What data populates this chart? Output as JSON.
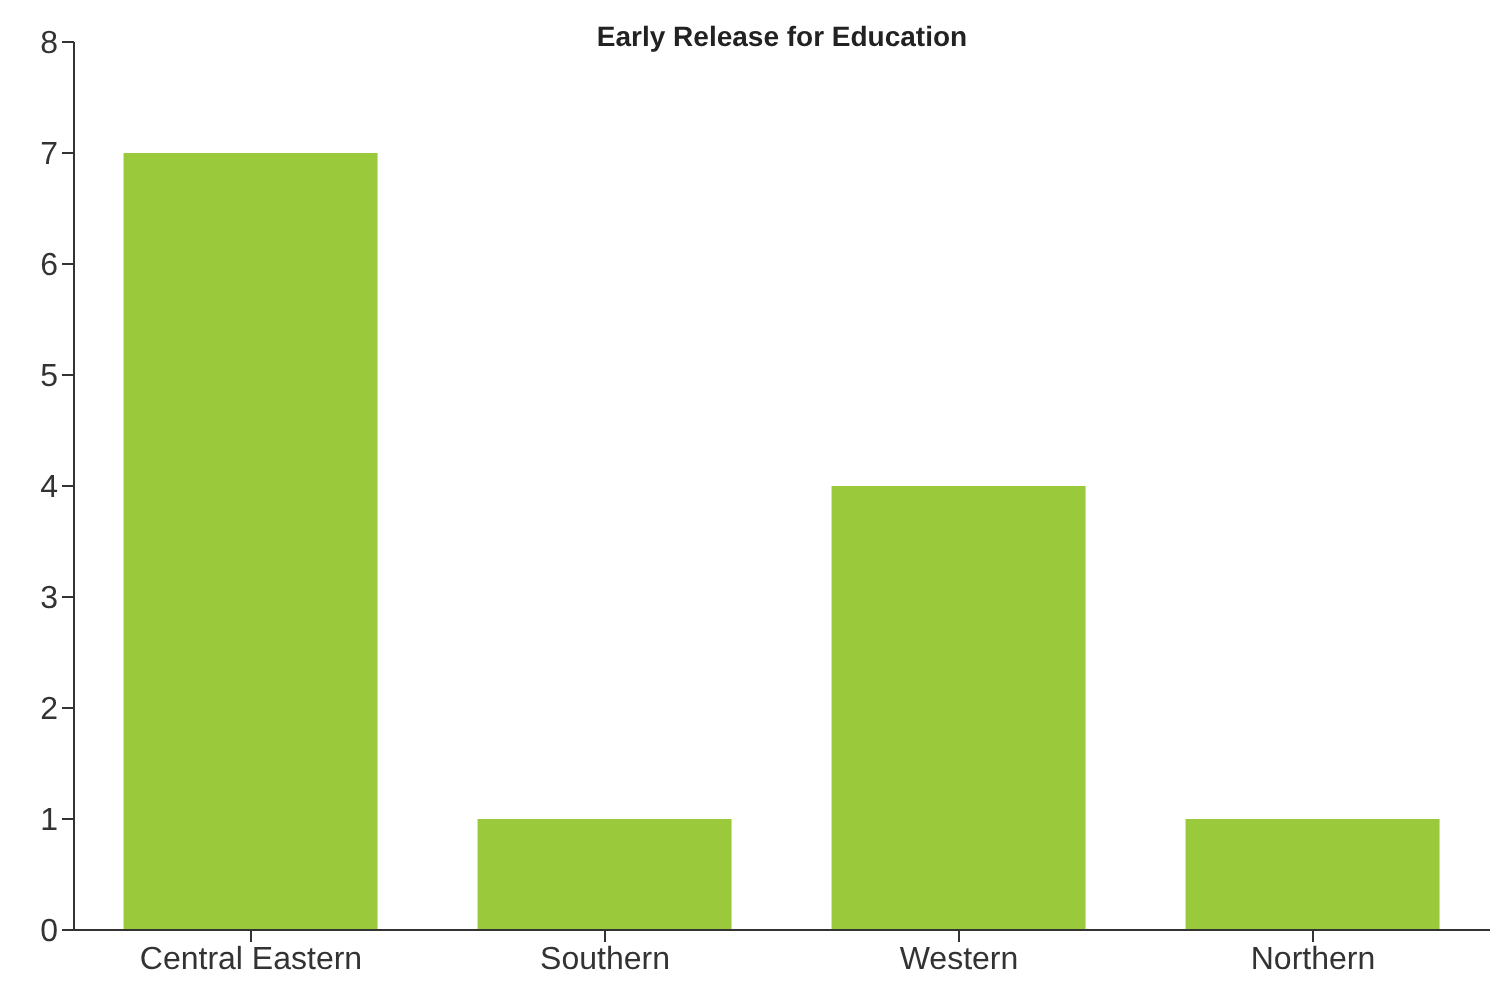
{
  "chart_data": {
    "type": "bar",
    "title": "Early Release for Education",
    "categories": [
      "Central Eastern",
      "Southern",
      "Western",
      "Northern"
    ],
    "values": [
      7,
      1,
      4,
      1
    ],
    "color": "#9aca3c",
    "ylim": [
      0,
      8
    ],
    "yticks": [
      0,
      1,
      2,
      3,
      4,
      5,
      6,
      7,
      8
    ],
    "grid": false,
    "legend": false
  }
}
